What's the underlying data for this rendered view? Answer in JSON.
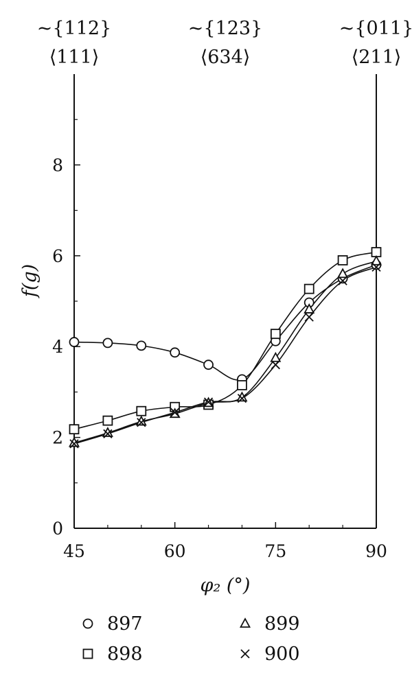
{
  "chart_data": {
    "type": "line",
    "xlabel": "φ₂ (°)",
    "ylabel": "f(g)",
    "xlim": [
      45,
      90
    ],
    "ylim": [
      0,
      10
    ],
    "x_ticks": [
      45,
      60,
      75,
      90
    ],
    "y_ticks": [
      0,
      2,
      4,
      6,
      8
    ],
    "x_minor_ticks": [
      50,
      55,
      65,
      70,
      80,
      85
    ],
    "y_minor_ticks": [
      1,
      3,
      5,
      7,
      9
    ],
    "top_labels": [
      {
        "x": 45,
        "line1": "~{112}",
        "line2": "⟨111⟩"
      },
      {
        "x": 67.5,
        "line1": "~{123}",
        "line2": "⟨634⟩"
      },
      {
        "x": 90,
        "line1": "~{011}",
        "line2": "⟨211⟩"
      }
    ],
    "series": [
      {
        "name": "897",
        "marker": "circle",
        "x": [
          45,
          50,
          55,
          60,
          65,
          70,
          75,
          80,
          85,
          90
        ],
        "y": [
          4.1,
          4.08,
          4.02,
          3.87,
          3.6,
          3.28,
          4.12,
          4.97,
          5.5,
          5.8
        ]
      },
      {
        "name": "898",
        "marker": "square",
        "x": [
          45,
          50,
          55,
          60,
          65,
          70,
          75,
          80,
          85,
          90
        ],
        "y": [
          2.18,
          2.37,
          2.58,
          2.67,
          2.72,
          3.15,
          4.28,
          5.27,
          5.9,
          6.08
        ]
      },
      {
        "name": "899",
        "marker": "triangle",
        "x": [
          45,
          50,
          55,
          60,
          65,
          70,
          75,
          80,
          85,
          90
        ],
        "y": [
          1.88,
          2.1,
          2.35,
          2.52,
          2.76,
          2.88,
          3.75,
          4.82,
          5.6,
          5.88
        ]
      },
      {
        "name": "900",
        "marker": "cross",
        "x": [
          45,
          50,
          55,
          60,
          65,
          70,
          75,
          80,
          85,
          90
        ],
        "y": [
          1.86,
          2.08,
          2.33,
          2.55,
          2.78,
          2.86,
          3.6,
          4.65,
          5.45,
          5.75
        ]
      }
    ],
    "legend": {
      "placement": "bottom",
      "columns": 2
    },
    "grid": false
  }
}
